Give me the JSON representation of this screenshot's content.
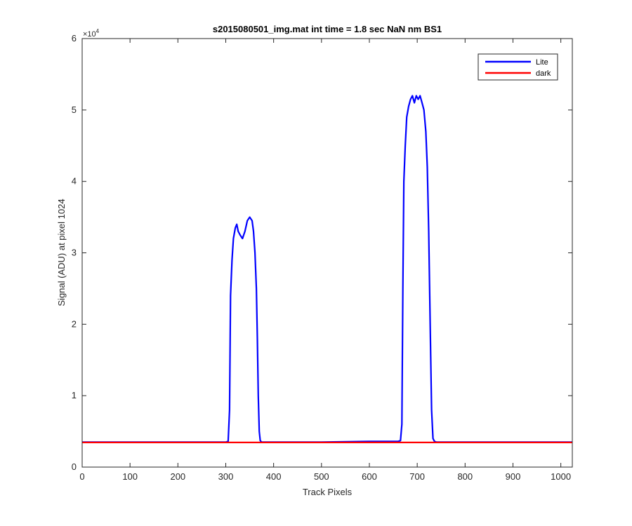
{
  "chart_data": {
    "type": "line",
    "title": "s2015080501_img.mat int time = 1.8 sec  NaN nm BS1",
    "xlabel": "Track Pixels",
    "ylabel": "Signal (ADU) at pixel 1024",
    "xlim": [
      0,
      1024
    ],
    "ylim": [
      0,
      60000
    ],
    "xticks": [
      0,
      100,
      200,
      300,
      400,
      500,
      600,
      700,
      800,
      900,
      1000
    ],
    "yticks": [
      0,
      1,
      2,
      3,
      4,
      5,
      6
    ],
    "y_exponent_label": "×10",
    "y_exponent_power": "4",
    "y_multiplier": 10000,
    "grid": false,
    "legend_position": "top-right",
    "series": [
      {
        "name": "Lite",
        "color": "#0000ff",
        "x": [
          0,
          300,
          305,
          308,
          310,
          313,
          316,
          320,
          323,
          326,
          330,
          335,
          340,
          345,
          350,
          355,
          358,
          361,
          364,
          366,
          368,
          370,
          372,
          375,
          400,
          500,
          600,
          660,
          665,
          668,
          670,
          672,
          675,
          678,
          682,
          686,
          690,
          694,
          698,
          702,
          706,
          710,
          714,
          718,
          721,
          724,
          727,
          730,
          733,
          736,
          740,
          800,
          900,
          1024
        ],
        "y": [
          3500,
          3500,
          3600,
          8000,
          24000,
          29000,
          32000,
          33500,
          34000,
          33000,
          32500,
          32000,
          33000,
          34500,
          35000,
          34500,
          33000,
          30000,
          25000,
          18000,
          10000,
          5000,
          3700,
          3500,
          3500,
          3500,
          3600,
          3600,
          3700,
          6000,
          25000,
          40000,
          45000,
          49000,
          50500,
          51500,
          52000,
          51000,
          52000,
          51500,
          52000,
          51000,
          50000,
          47000,
          42000,
          33000,
          20000,
          8000,
          4000,
          3600,
          3500,
          3500,
          3500,
          3500
        ]
      },
      {
        "name": "dark",
        "color": "#ff0000",
        "x": [
          0,
          1024
        ],
        "y": [
          3450,
          3450
        ]
      }
    ]
  }
}
